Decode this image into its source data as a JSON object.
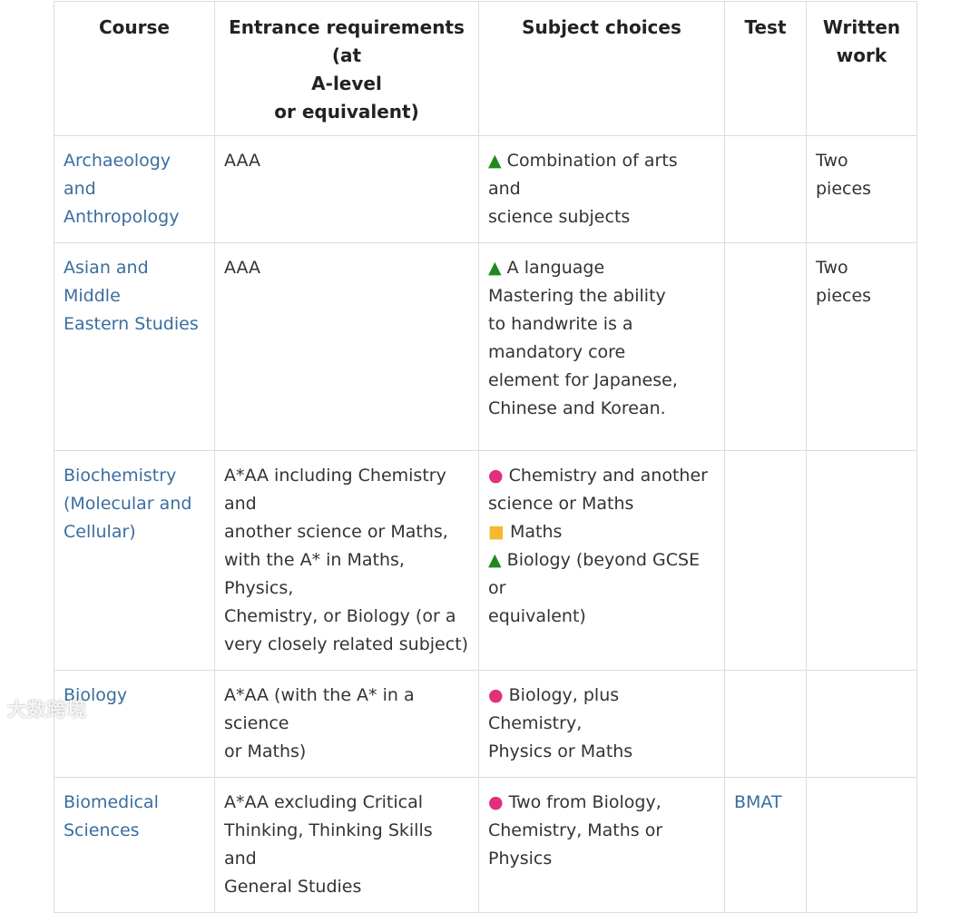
{
  "headers": [
    "Course",
    "Entrance requirements (at\nA-level\nor equivalent)",
    "Subject choices",
    "Test",
    "Written\nwork"
  ],
  "rows": [
    {
      "course": "Archaeology and\nAnthropology",
      "entrance": "AAA",
      "subjects": [
        {
          "marker": "▲",
          "marker_type": "triangle",
          "text": "Combination of arts and\nscience subjects"
        }
      ],
      "test": "",
      "written": "Two pieces"
    },
    {
      "course": "Asian and Middle\nEastern Studies",
      "entrance": " AAA",
      "subjects": [
        {
          "marker": "▲",
          "marker_type": "triangle",
          "text": "A language\nMastering the ability\nto handwrite is a\nmandatory core\nelement for Japanese,\nChinese and Korean."
        }
      ],
      "test": "",
      "written": " Two\npieces"
    },
    {
      "course": "Biochemistry\n(Molecular and\nCellular)",
      "entrance": "A*AA including Chemistry and\nanother science or Maths,\nwith the A* in Maths, Physics,\nChemistry, or Biology (or a\nvery closely related subject)",
      "subjects": [
        {
          "marker": "●",
          "marker_type": "circle",
          "text": "Chemistry and another\nscience or Maths"
        },
        {
          "marker": "■",
          "marker_type": "square",
          "text": "Maths"
        },
        {
          "marker": "▲",
          "marker_type": "triangle",
          "text": "Biology (beyond GCSE or\nequivalent)"
        }
      ],
      "test": "",
      "written": ""
    },
    {
      "course": "Biology",
      "entrance": "A*AA (with the A* in a science\nor Maths)",
      "subjects": [
        {
          "marker": "●",
          "marker_type": "circle",
          "text": " Biology, plus Chemistry,\nPhysics or Maths"
        }
      ],
      "test": "",
      "written": ""
    },
    {
      "course": "Biomedical\nSciences",
      "entrance": "A*AA excluding Critical\nThinking, Thinking Skills and\nGeneral Studies",
      "subjects": [
        {
          "marker": "●",
          "marker_type": "circle",
          "text": "Two from Biology,\nChemistry, Maths or Physics"
        }
      ],
      "test": "BMAT",
      "written": ""
    }
  ],
  "colors": {
    "link": "#3a6e9f",
    "triangle": "#1e8a1e",
    "circle": "#e0307a",
    "square": "#f5b82e",
    "border": "#dddddd"
  },
  "watermark": "大数跨境"
}
